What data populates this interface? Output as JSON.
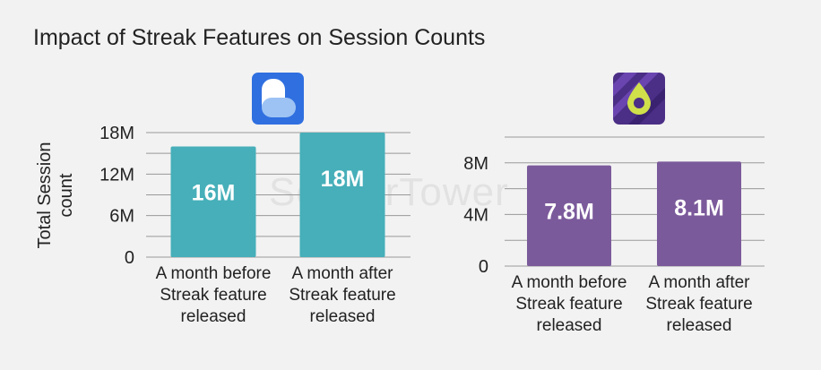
{
  "title": "Impact of Streak Features on Session Counts",
  "watermark": "SensorTower",
  "colors": {
    "left_bar": "#46afb9",
    "right_bar": "#7b5a9b",
    "grid": "#999999"
  },
  "icons": {
    "left": "app-icon-blue-b",
    "right": "app-icon-purple-drop"
  },
  "chart_data": [
    {
      "type": "bar",
      "categories": [
        "A month before Streak feature released",
        "A month after Streak feature released"
      ],
      "category_lines": [
        [
          "A month before",
          "Streak feature",
          "released"
        ],
        [
          "A month after",
          "Streak feature",
          "released"
        ]
      ],
      "values": [
        16,
        18
      ],
      "value_labels": [
        "16M",
        "18M"
      ],
      "ylabel_lines": [
        "Total Session",
        "count"
      ],
      "yticks": [
        0,
        6,
        12,
        18
      ],
      "ytick_labels": [
        "0",
        "6M",
        "12M",
        "18M"
      ],
      "ylim": [
        0,
        18
      ],
      "grid": true
    },
    {
      "type": "bar",
      "categories": [
        "A month before Streak feature released",
        "A month after Streak feature released"
      ],
      "category_lines": [
        [
          "A month before",
          "Streak feature",
          "released"
        ],
        [
          "A month after",
          "Streak feature",
          "released"
        ]
      ],
      "values": [
        7.8,
        8.1
      ],
      "value_labels": [
        "7.8M",
        "8.1M"
      ],
      "yticks": [
        0,
        4,
        8
      ],
      "ytick_labels": [
        "0",
        "4M",
        "8M"
      ],
      "ylim": [
        0,
        10
      ],
      "grid": true
    }
  ]
}
